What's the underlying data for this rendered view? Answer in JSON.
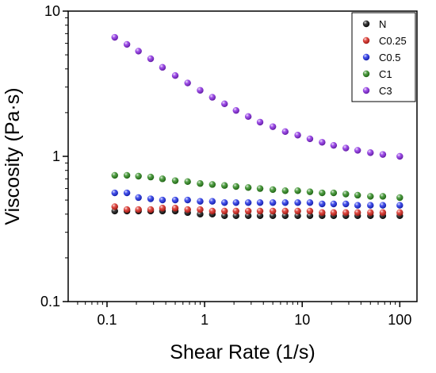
{
  "chart_data": {
    "type": "scatter",
    "title": "",
    "xlabel": "Shear Rate (1/s)",
    "ylabel": "Viscosity (Pa·s)",
    "xscale": "log",
    "yscale": "log",
    "xlim": [
      0.04,
      150
    ],
    "ylim": [
      0.1,
      10
    ],
    "xticks": [
      0.1,
      1,
      10,
      100
    ],
    "xtick_labels": [
      "0.1",
      "1",
      "10",
      "100"
    ],
    "yticks": [
      0.1,
      1,
      10
    ],
    "ytick_labels": [
      "0.1",
      "1",
      "10"
    ],
    "grid": false,
    "legend_position": "top-right",
    "x": [
      0.12,
      0.16,
      0.21,
      0.28,
      0.37,
      0.5,
      0.67,
      0.9,
      1.2,
      1.6,
      2.1,
      2.8,
      3.7,
      5.0,
      6.7,
      9.0,
      12,
      16,
      21,
      28,
      37,
      50,
      67,
      100
    ],
    "series": [
      {
        "name": "N",
        "color": "#111111",
        "values": [
          0.42,
          0.42,
          0.42,
          0.42,
          0.42,
          0.42,
          0.41,
          0.4,
          0.4,
          0.39,
          0.39,
          0.39,
          0.39,
          0.39,
          0.39,
          0.39,
          0.39,
          0.39,
          0.39,
          0.39,
          0.39,
          0.39,
          0.39,
          0.39
        ]
      },
      {
        "name": "C0.25",
        "color": "#d7261e",
        "values": [
          0.45,
          0.43,
          0.43,
          0.43,
          0.44,
          0.44,
          0.43,
          0.43,
          0.42,
          0.42,
          0.42,
          0.42,
          0.42,
          0.42,
          0.42,
          0.42,
          0.42,
          0.41,
          0.41,
          0.41,
          0.41,
          0.41,
          0.41,
          0.41
        ]
      },
      {
        "name": "C0.5",
        "color": "#1f2ee6",
        "values": [
          0.56,
          0.56,
          0.52,
          0.51,
          0.5,
          0.5,
          0.5,
          0.49,
          0.49,
          0.48,
          0.48,
          0.48,
          0.48,
          0.48,
          0.48,
          0.48,
          0.48,
          0.47,
          0.47,
          0.47,
          0.46,
          0.46,
          0.46,
          0.46
        ]
      },
      {
        "name": "C1",
        "color": "#2e8a1f",
        "values": [
          0.74,
          0.74,
          0.73,
          0.72,
          0.7,
          0.68,
          0.67,
          0.65,
          0.64,
          0.63,
          0.62,
          0.61,
          0.6,
          0.59,
          0.58,
          0.58,
          0.57,
          0.56,
          0.56,
          0.55,
          0.54,
          0.53,
          0.53,
          0.52
        ]
      },
      {
        "name": "C3",
        "color": "#8a2be2",
        "values": [
          6.6,
          5.9,
          5.3,
          4.7,
          4.1,
          3.6,
          3.2,
          2.85,
          2.55,
          2.3,
          2.07,
          1.88,
          1.72,
          1.6,
          1.48,
          1.4,
          1.32,
          1.25,
          1.19,
          1.14,
          1.1,
          1.06,
          1.03,
          1.0
        ]
      }
    ]
  }
}
